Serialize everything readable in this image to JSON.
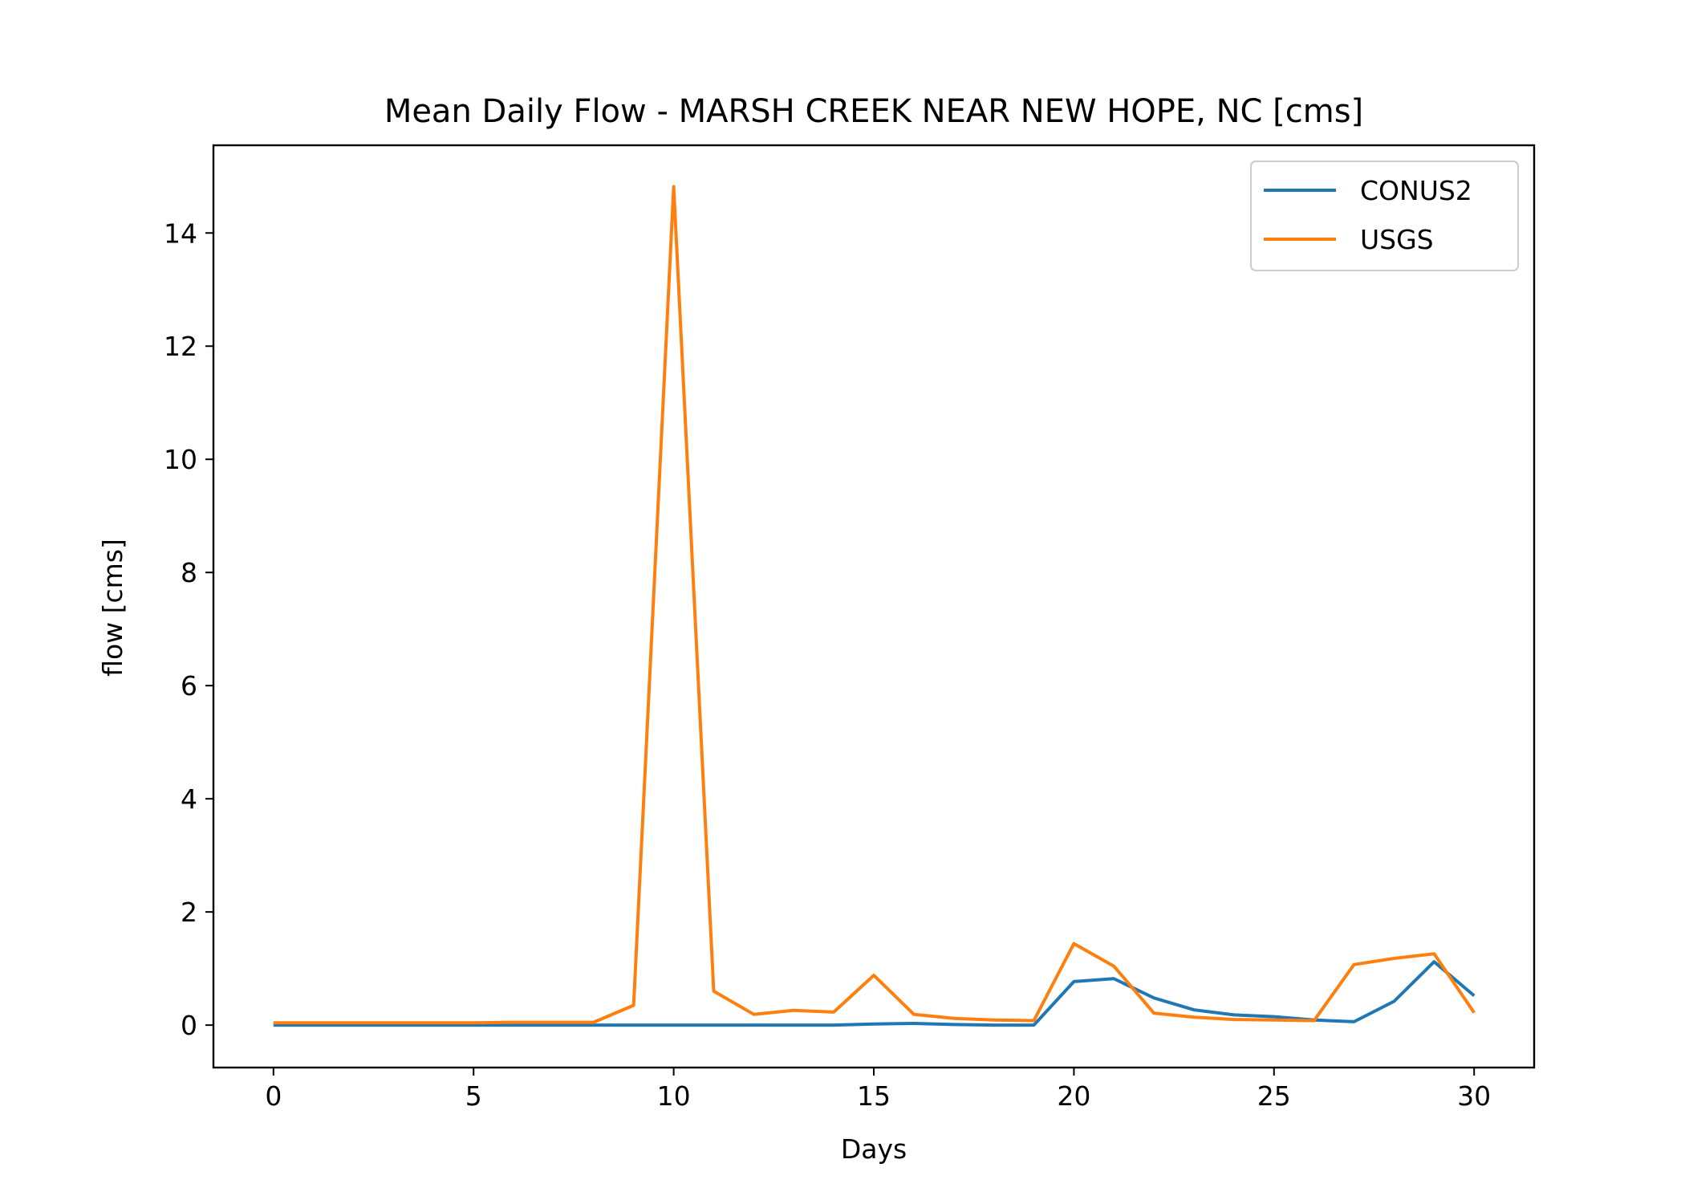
{
  "chart_data": {
    "type": "line",
    "title": "Mean Daily Flow - MARSH CREEK NEAR NEW HOPE, NC [cms]",
    "xlabel": "Days",
    "ylabel": "flow [cms]",
    "xlim": [
      -1.5,
      31.5
    ],
    "ylim": [
      -0.75,
      15.55
    ],
    "x_ticks": [
      0,
      5,
      10,
      15,
      20,
      25,
      30
    ],
    "y_ticks": [
      0,
      2,
      4,
      6,
      8,
      10,
      12,
      14
    ],
    "x_tick_labels": [
      "0",
      "5",
      "10",
      "15",
      "20",
      "25",
      "30"
    ],
    "y_tick_labels": [
      "0",
      "2",
      "4",
      "6",
      "8",
      "10",
      "12",
      "14"
    ],
    "grid": false,
    "legend_position": "top-right",
    "x": [
      0,
      1,
      2,
      3,
      4,
      5,
      6,
      7,
      8,
      9,
      10,
      11,
      12,
      13,
      14,
      15,
      16,
      17,
      18,
      19,
      20,
      21,
      22,
      23,
      24,
      25,
      26,
      27,
      28,
      29,
      30
    ],
    "series": [
      {
        "name": "CONUS2",
        "color": "#1f77b4",
        "values": [
          0,
          0,
          0,
          0,
          0,
          0,
          0,
          0,
          0,
          0,
          0,
          0,
          0,
          0,
          0,
          0.02,
          0.03,
          0.01,
          0,
          0,
          0.77,
          0.82,
          0.48,
          0.27,
          0.18,
          0.15,
          0.09,
          0.06,
          0.42,
          1.12,
          0.52
        ]
      },
      {
        "name": "USGS",
        "color": "#ff7f0e",
        "values": [
          0.04,
          0.04,
          0.04,
          0.04,
          0.04,
          0.04,
          0.05,
          0.05,
          0.05,
          0.35,
          14.82,
          0.6,
          0.19,
          0.26,
          0.23,
          0.88,
          0.19,
          0.12,
          0.09,
          0.08,
          1.44,
          1.04,
          0.21,
          0.14,
          0.1,
          0.09,
          0.08,
          1.07,
          1.18,
          1.26,
          0.22
        ]
      }
    ]
  }
}
